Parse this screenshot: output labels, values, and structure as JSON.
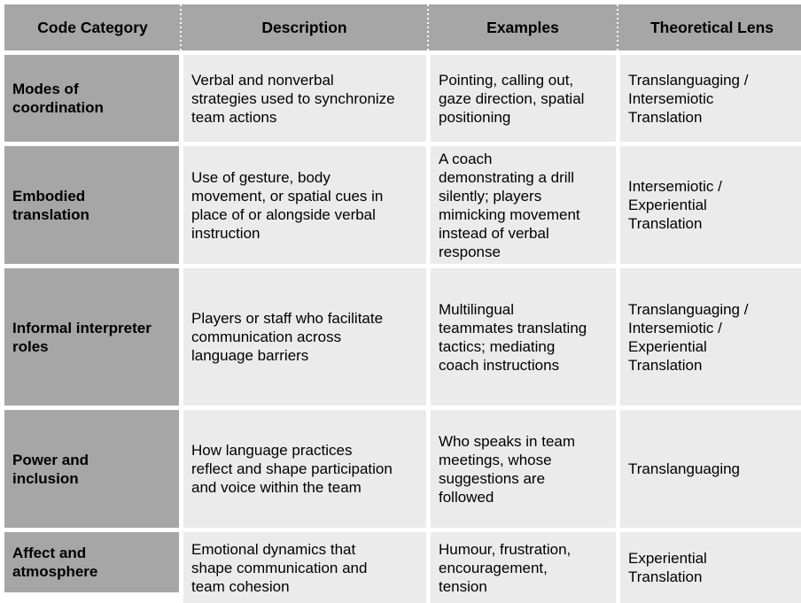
{
  "colors": {
    "header_bg": "#a6a6a6",
    "category_bg": "#a6a6a6",
    "cell_bg": "#ebebeb",
    "gap": "#ffffff",
    "text": "#000000"
  },
  "table": {
    "columns": [
      "Code Category",
      "Description",
      "Examples",
      "Theoretical Lens"
    ],
    "rows": [
      {
        "category": "Modes of\ncoordination",
        "description": "Verbal and nonverbal\nstrategies used to synchronize\nteam actions",
        "examples": "Pointing, calling out,\ngaze direction, spatial\npositioning",
        "lens": "Translanguaging /\nIntersemiotic\nTranslation"
      },
      {
        "category": "Embodied\ntranslation",
        "description": "Use of gesture, body\nmovement, or spatial cues in\nplace of or alongside verbal\ninstruction",
        "examples": "A coach\ndemonstrating a drill\nsilently; players\nmimicking movement\ninstead of verbal\nresponse",
        "lens": "Intersemiotic /\nExperiential\nTranslation"
      },
      {
        "category": "Informal interpreter\nroles",
        "description": "Players or staff who facilitate\ncommunication across\nlanguage barriers",
        "examples": "Multilingual\nteammates translating\ntactics; mediating\ncoach instructions",
        "lens": "Translanguaging /\nIntersemiotic /\nExperiential\nTranslation"
      },
      {
        "category": "Power and\ninclusion",
        "description": "How language practices\nreflect and shape participation\nand voice within the team",
        "examples": "Who speaks in team\nmeetings, whose\nsuggestions are\nfollowed",
        "lens": "Translanguaging"
      },
      {
        "category": "Affect and\natmosphere",
        "description": "Emotional dynamics that\nshape communication and\nteam cohesion",
        "examples": "Humour, frustration,\nencouragement,\ntension",
        "lens": "Experiential\nTranslation"
      }
    ]
  }
}
